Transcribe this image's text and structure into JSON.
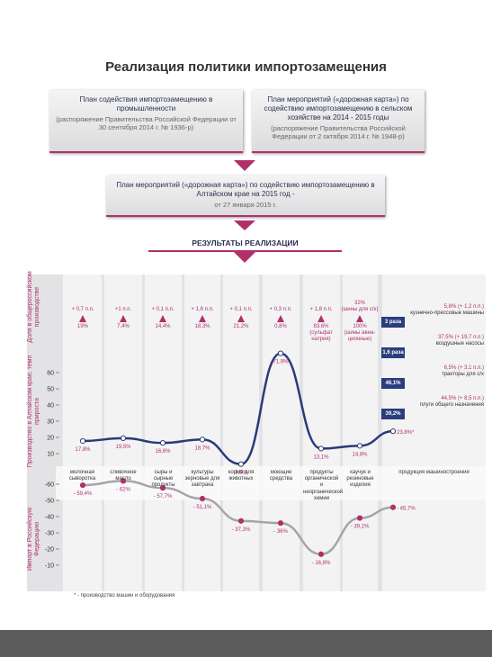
{
  "title": "Реализация политики импортозамещения",
  "plans": [
    {
      "title": "План содействия импортозамещению в промышленности",
      "source": "(распоряжение Правительства Российской Федерации от 30 сентября 2014 г. № 1936-р)"
    },
    {
      "title": "План мероприятий («дорожная карта») по содействию импортозамещению в сельском хозяйстве на 2014 - 2015 годы",
      "source": "(распоряжение Правительства Российской Федерации от 2 октября 2014 г. № 1948-р)"
    }
  ],
  "regional_plan": {
    "title": "План мероприятий («дорожная карта») по содействию импортозамещению в Алтайском крае на 2015 год -",
    "date": "от 27 января 2015 г."
  },
  "results_title": "РЕЗУЛЬТАТЫ РЕАЛИЗАЦИИ",
  "share": {
    "axis_label": "Доля в общероссийском производстве",
    "items": [
      {
        "above": [
          "+ 0,7 п.п."
        ],
        "below": [
          "19%"
        ]
      },
      {
        "above": [
          "+1 п.п."
        ],
        "below": [
          "7,4%"
        ]
      },
      {
        "above": [
          "+ 0,1 п.п."
        ],
        "below": [
          "14,4%"
        ]
      },
      {
        "above": [
          "+ 1,6 п.п."
        ],
        "below": [
          "18,3%"
        ]
      },
      {
        "above": [
          "+ 0,1 п.п."
        ],
        "below": [
          "21,2%"
        ]
      },
      {
        "above": [
          "+ 0,3 п.п."
        ],
        "below": [
          "0,8%"
        ]
      },
      {
        "above": [
          "+ 1,8 п.п."
        ],
        "below": [
          "83,6%",
          "(сульфат натрия)"
        ]
      },
      {
        "above": [
          "32%",
          "(шины для с/х)"
        ],
        "below": [
          "100%",
          "(шины авиа-ционные)"
        ]
      }
    ],
    "machinery": [
      {
        "ratio": "3 раза",
        "share": "5,8% (+ 1,2 п.п.)",
        "name": "кузнечно-прессовые машины"
      },
      {
        "ratio": "1,6 раза",
        "share": "37,5% (+ 19,7 п.п.)",
        "name": "воздушные насосы"
      },
      {
        "ratio": "46,1%",
        "share": "6,5% (+ 3,1 п.п.)",
        "name": "тракторы для с/х"
      },
      {
        "ratio": "39,2%",
        "share": "44,5% (+ 8,5 п.п.)",
        "name": "плуги общего назначения"
      }
    ]
  },
  "chart_data": [
    {
      "type": "line",
      "axis_label": "Производство в Алтайском крае, темп прироста",
      "categories": [
        "молочная сыворотка",
        "сливочное масло",
        "сыры и сырные продукты",
        "культуры зерновые для завтрака",
        "корма для животных",
        "моющие средства",
        "продукты органической и неорганической химии",
        "каучук и резиновые изделия",
        "продукция машиностроения"
      ],
      "values": [
        17.8,
        19.5,
        16.6,
        18.7,
        3.5,
        71.9,
        13.1,
        14.8,
        23.8
      ],
      "value_labels": [
        "17,8%",
        "19,5%",
        "16,6%",
        "18,7%",
        "3,5%",
        "71,9%",
        "13,1%",
        "14,8%",
        "23,8%*"
      ],
      "color": "#2b3a7a",
      "ylim": [
        0,
        75
      ],
      "yticks": [
        10,
        20,
        30,
        40,
        50,
        60
      ]
    },
    {
      "type": "line",
      "axis_label": "Импорт в Российскую Федерацию",
      "values": [
        -59.4,
        -62,
        -57.7,
        -51.1,
        -37.3,
        -36,
        -16.8,
        -39.1,
        -45.7
      ],
      "value_labels": [
        "- 59,4%",
        "- 62%",
        "- 57,7%",
        "- 51,1%",
        "- 37,3%",
        "- 36%",
        "- 16,8%",
        "- 39,1%",
        "- 45,7%"
      ],
      "color": "#a5a5a8",
      "ylim": [
        0,
        -70
      ],
      "yticks": [
        -10,
        -20,
        -30,
        -40,
        -50,
        -60
      ]
    }
  ],
  "footnote": "* - производство машин и оборудования"
}
